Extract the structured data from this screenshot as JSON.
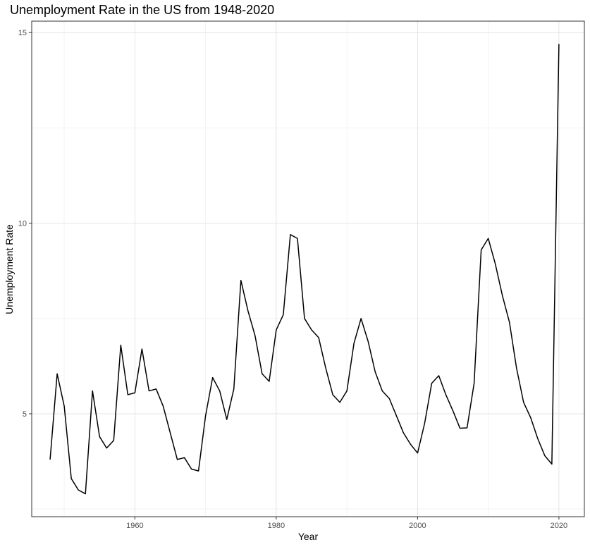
{
  "chart_data": {
    "type": "line",
    "title": "Unemployment Rate in the US from 1948-2020",
    "xlabel": "Year",
    "ylabel": "Unemployment Rate",
    "xlim": [
      1945.4,
      2023.6
    ],
    "ylim": [
      2.3,
      15.3
    ],
    "x_ticks": [
      1960,
      1980,
      2000,
      2020
    ],
    "x_tick_labels": [
      "1960",
      "1980",
      "2000",
      "2020"
    ],
    "y_ticks": [
      5,
      10,
      15
    ],
    "y_tick_labels": [
      "5",
      "10",
      "15"
    ],
    "grid": true,
    "legend": "none",
    "series": [
      {
        "color": "#000000",
        "x": [
          1948,
          1949,
          1950,
          1951,
          1952,
          1953,
          1954,
          1955,
          1956,
          1957,
          1958,
          1959,
          1960,
          1961,
          1962,
          1963,
          1964,
          1965,
          1966,
          1967,
          1968,
          1969,
          1970,
          1971,
          1972,
          1973,
          1974,
          1975,
          1976,
          1977,
          1978,
          1979,
          1980,
          1981,
          1982,
          1983,
          1984,
          1985,
          1986,
          1987,
          1988,
          1989,
          1990,
          1991,
          1992,
          1993,
          1994,
          1995,
          1996,
          1997,
          1998,
          1999,
          2000,
          2001,
          2002,
          2003,
          2004,
          2005,
          2006,
          2007,
          2008,
          2009,
          2010,
          2011,
          2012,
          2013,
          2014,
          2015,
          2016,
          2017,
          2018,
          2019,
          2020
        ],
        "values": [
          3.8,
          6.05,
          5.2,
          3.3,
          3.0,
          2.9,
          5.6,
          4.4,
          4.1,
          4.3,
          6.8,
          5.5,
          5.55,
          6.7,
          5.6,
          5.65,
          5.2,
          4.5,
          3.8,
          3.85,
          3.55,
          3.5,
          4.95,
          5.95,
          5.6,
          4.85,
          5.65,
          8.5,
          7.7,
          7.05,
          6.05,
          5.85,
          7.2,
          7.6,
          9.7,
          9.6,
          7.5,
          7.2,
          7.0,
          6.2,
          5.5,
          5.3,
          5.6,
          6.85,
          7.5,
          6.9,
          6.1,
          5.6,
          5.4,
          4.95,
          4.5,
          4.2,
          3.97,
          4.75,
          5.8,
          6.0,
          5.5,
          5.08,
          4.62,
          4.63,
          5.8,
          9.3,
          9.6,
          8.93,
          8.1,
          7.4,
          6.2,
          5.3,
          4.9,
          4.35,
          3.9,
          3.68,
          14.7
        ]
      }
    ]
  }
}
